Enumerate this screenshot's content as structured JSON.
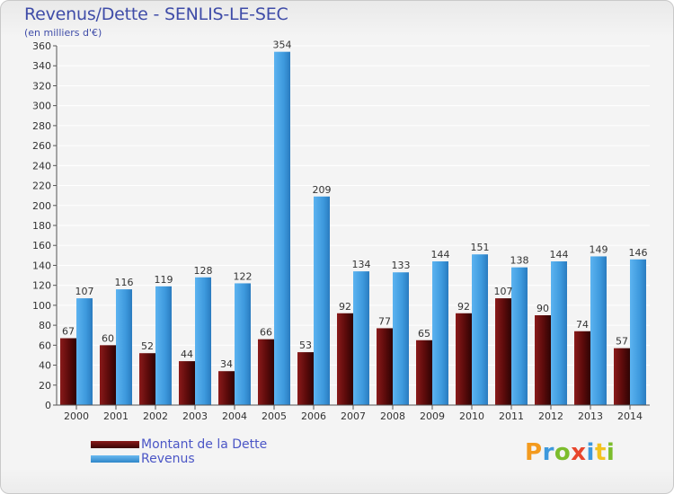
{
  "header": {
    "title": "Revenus/Dette - SENLIS-LE-SEC",
    "subtitle": "(en milliers d'€)"
  },
  "legend": {
    "items": [
      {
        "label": "Montant de la Dette",
        "color": "#6b0d0d"
      },
      {
        "label": "Revenus",
        "color": "#3d99dd"
      }
    ]
  },
  "logo": {
    "text": "Proxiti"
  },
  "chart_data": {
    "type": "bar",
    "title": "Revenus/Dette - SENLIS-LE-SEC",
    "subtitle": "(en milliers d'€)",
    "xlabel": "",
    "ylabel": "",
    "categories": [
      "2000",
      "2001",
      "2002",
      "2003",
      "2004",
      "2005",
      "2006",
      "2007",
      "2008",
      "2009",
      "2010",
      "2011",
      "2012",
      "2013",
      "2014"
    ],
    "series": [
      {
        "name": "Montant de la Dette",
        "color": "#6b0d0d",
        "values": [
          67,
          60,
          52,
          44,
          34,
          66,
          53,
          92,
          77,
          65,
          92,
          107,
          90,
          74,
          57
        ]
      },
      {
        "name": "Revenus",
        "color": "#3d99dd",
        "values": [
          107,
          116,
          119,
          128,
          122,
          354,
          209,
          134,
          133,
          144,
          151,
          138,
          144,
          149,
          146
        ]
      }
    ],
    "ylim": [
      0,
      360
    ],
    "yticks": [
      0,
      20,
      40,
      60,
      80,
      100,
      120,
      140,
      160,
      180,
      200,
      220,
      240,
      260,
      280,
      300,
      320,
      340,
      360
    ],
    "grid": true,
    "legend_position": "bottom-left"
  }
}
